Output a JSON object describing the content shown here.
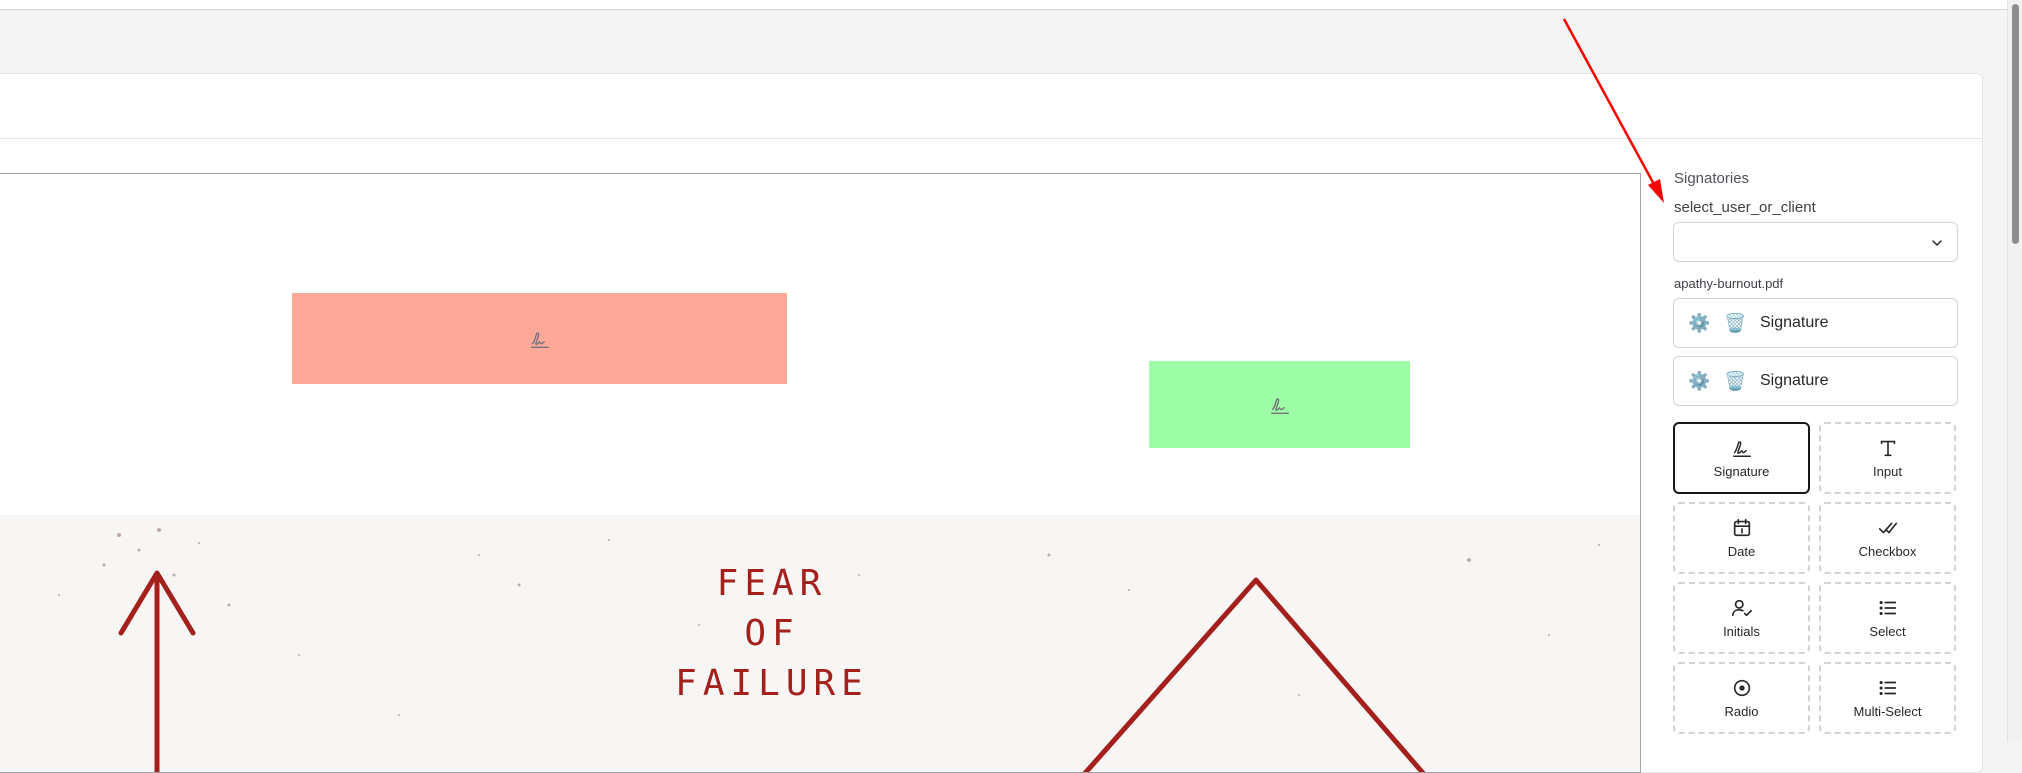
{
  "panel": {
    "title": "Signatories",
    "select_label": "select_user_or_client",
    "select_value": "",
    "filename": "apathy-burnout.pdf",
    "signers": [
      {
        "label": "Signature",
        "settings_icon": "gear-icon",
        "delete_icon": "trash-icon"
      },
      {
        "label": "Signature",
        "settings_icon": "gear-icon",
        "delete_icon": "trash-icon"
      }
    ],
    "tools": [
      {
        "label": "Signature",
        "icon": "signature-icon",
        "active": true
      },
      {
        "label": "Input",
        "icon": "text-icon",
        "active": false
      },
      {
        "label": "Date",
        "icon": "calendar-icon",
        "active": false
      },
      {
        "label": "Checkbox",
        "icon": "double-check-icon",
        "active": false
      },
      {
        "label": "Initials",
        "icon": "user-check-icon",
        "active": false
      },
      {
        "label": "Select",
        "icon": "list-icon",
        "active": false
      },
      {
        "label": "Radio",
        "icon": "radio-icon",
        "active": false
      },
      {
        "label": "Multi-Select",
        "icon": "list-icon",
        "active": false
      }
    ]
  },
  "document": {
    "fields": [
      {
        "type": "signature",
        "color": "#fda898"
      },
      {
        "type": "signature",
        "color": "#9efda7"
      }
    ],
    "scan_text": [
      "FEAR",
      "OF",
      "FAILURE"
    ],
    "scan_color": "#a3201d"
  },
  "annotation": {
    "arrow_color": "#ff0000"
  }
}
